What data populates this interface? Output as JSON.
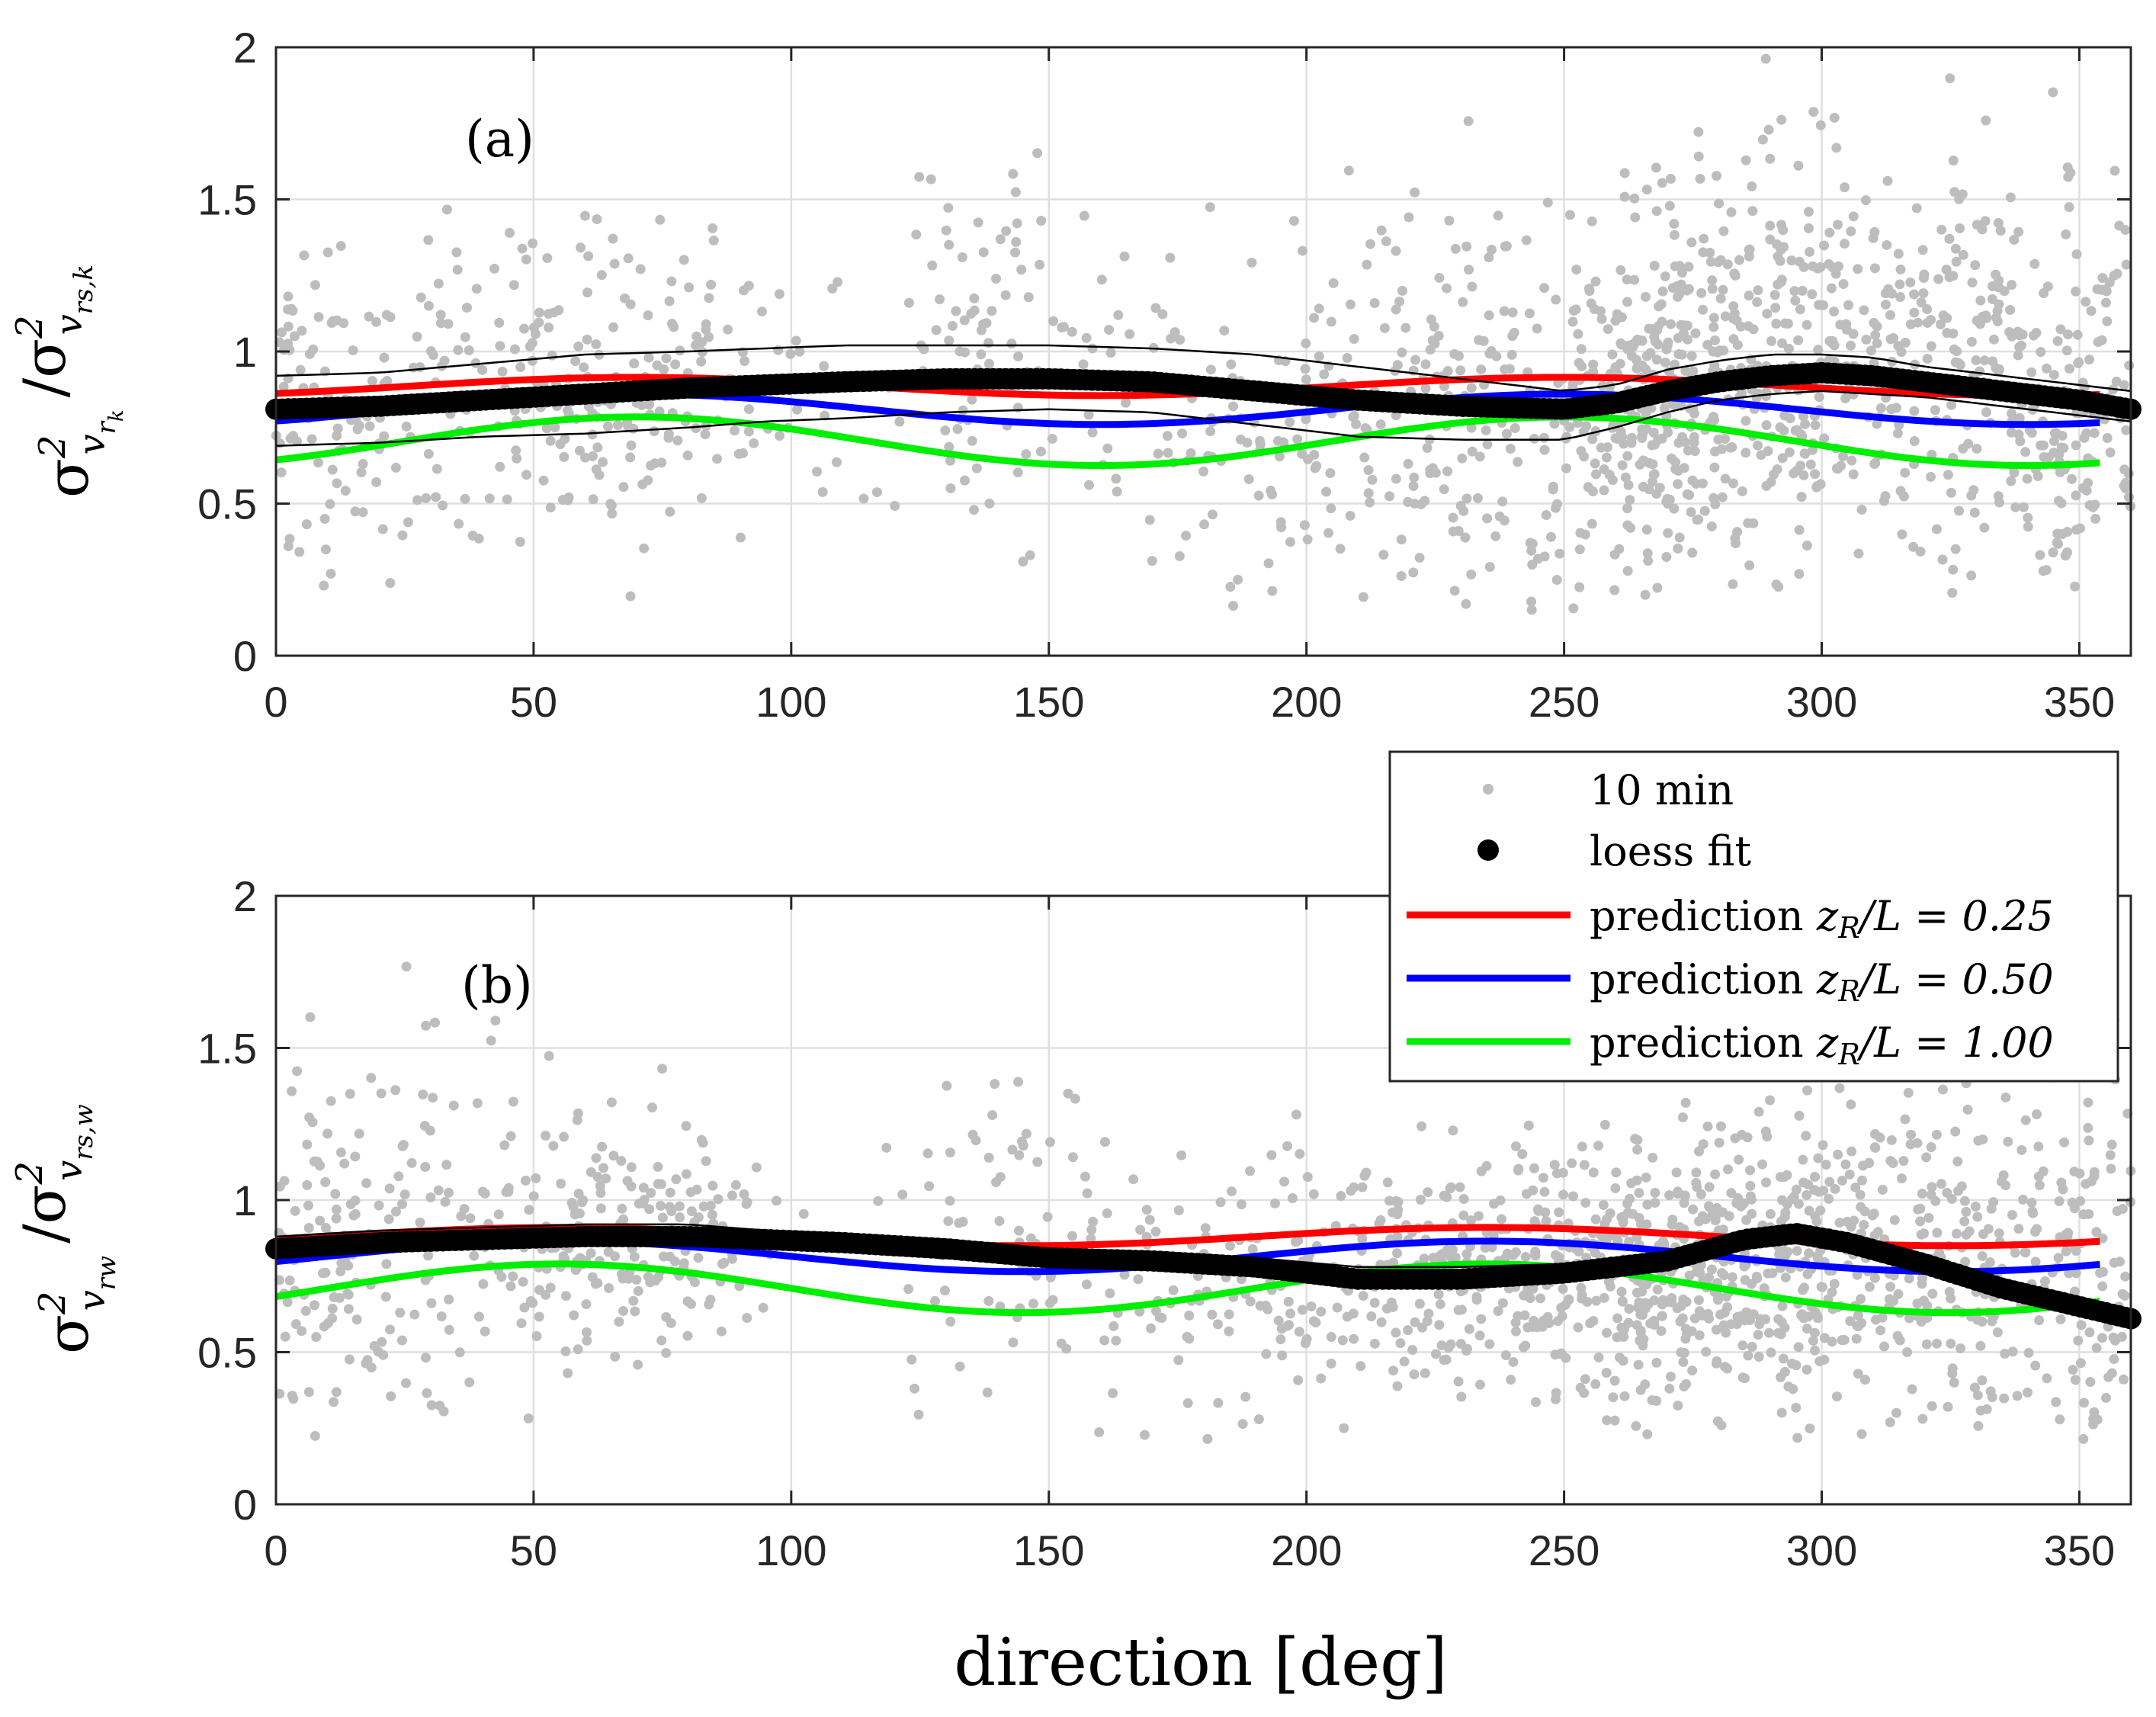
{
  "chart_data": {
    "type": "scatter",
    "xlabel": "direction [deg]",
    "legend": {
      "placement": "right, between panels",
      "entries": [
        {
          "label": "10 min",
          "kind": "points",
          "color": "#bdbdbd"
        },
        {
          "label": "loess fit",
          "kind": "big-points",
          "color": "#000000"
        },
        {
          "label": "prediction z_R/L = 0.25",
          "text_prefix": "prediction ",
          "math": "z",
          "sub": "R",
          "suffix": "/L = 0.25",
          "kind": "line",
          "color": "#ff0000"
        },
        {
          "label": "prediction z_R/L = 0.50",
          "text_prefix": "prediction ",
          "math": "z",
          "sub": "R",
          "suffix": "/L = 0.50",
          "kind": "line",
          "color": "#0000ff"
        },
        {
          "label": "prediction z_R/L = 1.00",
          "text_prefix": "prediction ",
          "math": "z",
          "sub": "R",
          "suffix": "/L = 1.00",
          "kind": "line",
          "color": "#00ee00"
        }
      ]
    },
    "panels": [
      {
        "label": "(a)",
        "ylabel": "σ²_{v_{r_k}} / σ²_{v_{rs,k}}",
        "ylabel_parts": {
          "num_sub": "v",
          "num_subsub": "r",
          "num_subsubsub": "k",
          "den_sub": "v",
          "den_subsub": "rs,k"
        },
        "xlim": [
          0,
          360
        ],
        "ylim": [
          0,
          2
        ],
        "xticks": [
          0,
          50,
          100,
          150,
          200,
          250,
          300,
          350
        ],
        "yticks": [
          0,
          0.5,
          1,
          1.5,
          2
        ],
        "ytick_labels": [
          "0",
          "0.5",
          "1",
          "1.5",
          "2"
        ],
        "grid": true,
        "loess_fit": {
          "x": [
            0,
            20,
            40,
            60,
            80,
            95,
            110,
            130,
            150,
            170,
            190,
            210,
            230,
            250,
            260,
            270,
            280,
            290,
            300,
            310,
            320,
            330,
            340,
            350,
            360
          ],
          "y": [
            0.81,
            0.82,
            0.84,
            0.86,
            0.88,
            0.89,
            0.9,
            0.91,
            0.91,
            0.9,
            0.87,
            0.84,
            0.82,
            0.81,
            0.83,
            0.87,
            0.9,
            0.92,
            0.93,
            0.92,
            0.9,
            0.88,
            0.86,
            0.84,
            0.81
          ],
          "ci_upper": [
            0.92,
            0.93,
            0.96,
            0.99,
            1.0,
            1.01,
            1.02,
            1.02,
            1.02,
            1.01,
            0.99,
            0.95,
            0.91,
            0.87,
            0.89,
            0.94,
            0.97,
            0.99,
            0.99,
            0.98,
            0.95,
            0.93,
            0.91,
            0.89,
            0.87
          ],
          "ci_lower": [
            0.69,
            0.7,
            0.72,
            0.73,
            0.75,
            0.77,
            0.78,
            0.8,
            0.81,
            0.8,
            0.76,
            0.72,
            0.71,
            0.71,
            0.75,
            0.8,
            0.84,
            0.86,
            0.87,
            0.86,
            0.85,
            0.83,
            0.81,
            0.79,
            0.77
          ]
        },
        "predictions": [
          {
            "name": "prediction z_R/L = 0.25",
            "color": "#ff0000",
            "mean": 0.885,
            "amp": 0.03,
            "phase": 250,
            "x_max": 355
          },
          {
            "name": "prediction z_R/L = 0.50",
            "color": "#0000ff",
            "mean": 0.81,
            "amp": 0.05,
            "phase": 250,
            "x_max": 355
          },
          {
            "name": "prediction z_R/L = 1.00",
            "color": "#00ee00",
            "mean": 0.705,
            "amp": 0.08,
            "phase": 250,
            "x_max": 355
          }
        ],
        "scatter_density": {
          "note": "~1900 ten-minute samples, denser in sectors 60-90, 130-150 and 200-360 deg",
          "center_x": [
            10,
            40,
            75,
            140,
            170,
            230,
            270,
            300,
            340
          ],
          "center_y": [
            0.8,
            0.9,
            0.85,
            1.05,
            0.8,
            0.75,
            0.85,
            1.0,
            0.85
          ],
          "sigma_y": [
            0.28,
            0.32,
            0.22,
            0.28,
            0.35,
            0.33,
            0.3,
            0.35,
            0.3
          ],
          "counts": [
            90,
            110,
            160,
            80,
            60,
            330,
            260,
            330,
            230
          ],
          "spread_x": [
            12,
            20,
            18,
            10,
            18,
            30,
            12,
            22,
            16
          ],
          "seed": 7
        }
      },
      {
        "label": "(b)",
        "ylabel": "σ²_{v_{rw}} / σ²_{v_{rs,w}}",
        "ylabel_parts": {
          "num_sub": "v",
          "num_subsub": "rw",
          "num_subsubsub": "",
          "den_sub": "v",
          "den_subsub": "rs,w"
        },
        "xlim": [
          0,
          360
        ],
        "ylim": [
          0,
          2
        ],
        "xticks": [
          0,
          50,
          100,
          150,
          200,
          250,
          300,
          350
        ],
        "yticks": [
          0,
          0.5,
          1,
          1.5,
          2
        ],
        "ytick_labels": [
          "0",
          "0.5",
          "1",
          "1.5",
          "2"
        ],
        "grid": true,
        "loess_fit": {
          "x": [
            0,
            20,
            40,
            60,
            80,
            95,
            110,
            130,
            150,
            170,
            190,
            210,
            230,
            250,
            270,
            285,
            295,
            305,
            320,
            335,
            350,
            360
          ],
          "y": [
            0.84,
            0.86,
            0.87,
            0.88,
            0.88,
            0.87,
            0.86,
            0.84,
            0.81,
            0.8,
            0.78,
            0.74,
            0.74,
            0.76,
            0.8,
            0.87,
            0.89,
            0.86,
            0.79,
            0.71,
            0.65,
            0.61
          ],
          "ci_upper": [
            0.88,
            0.9,
            0.91,
            0.92,
            0.92,
            0.9,
            0.88,
            0.86,
            0.84,
            0.83,
            0.81,
            0.78,
            0.78,
            0.79,
            0.82,
            0.89,
            0.91,
            0.88,
            0.82,
            0.74,
            0.68,
            0.64
          ],
          "ci_lower": [
            0.81,
            0.83,
            0.84,
            0.85,
            0.85,
            0.84,
            0.84,
            0.81,
            0.79,
            0.77,
            0.75,
            0.71,
            0.71,
            0.73,
            0.78,
            0.85,
            0.87,
            0.84,
            0.76,
            0.68,
            0.62,
            0.58
          ]
        },
        "predictions": [
          {
            "name": "prediction z_R/L = 0.25",
            "color": "#ff0000",
            "mean": 0.88,
            "amp": 0.03,
            "phase": 55,
            "x_max": 355
          },
          {
            "name": "prediction z_R/L = 0.50",
            "color": "#0000ff",
            "mean": 0.815,
            "amp": 0.05,
            "phase": 55,
            "x_max": 355
          },
          {
            "name": "prediction z_R/L = 1.00",
            "color": "#00ee00",
            "mean": 0.71,
            "amp": 0.08,
            "phase": 55,
            "x_max": 355
          }
        ],
        "scatter_density": {
          "note": "~1900 ten-minute samples, denser in sectors 60-80 and 200-360 deg",
          "center_x": [
            10,
            40,
            70,
            140,
            180,
            230,
            270,
            300,
            340
          ],
          "center_y": [
            0.8,
            0.85,
            0.9,
            0.95,
            0.65,
            0.75,
            0.75,
            0.9,
            0.75
          ],
          "sigma_y": [
            0.3,
            0.35,
            0.18,
            0.28,
            0.22,
            0.2,
            0.18,
            0.28,
            0.28
          ],
          "counts": [
            100,
            100,
            180,
            70,
            50,
            350,
            330,
            290,
            200
          ],
          "spread_x": [
            14,
            20,
            14,
            12,
            14,
            30,
            18,
            20,
            18
          ],
          "seed": 19
        }
      }
    ]
  }
}
